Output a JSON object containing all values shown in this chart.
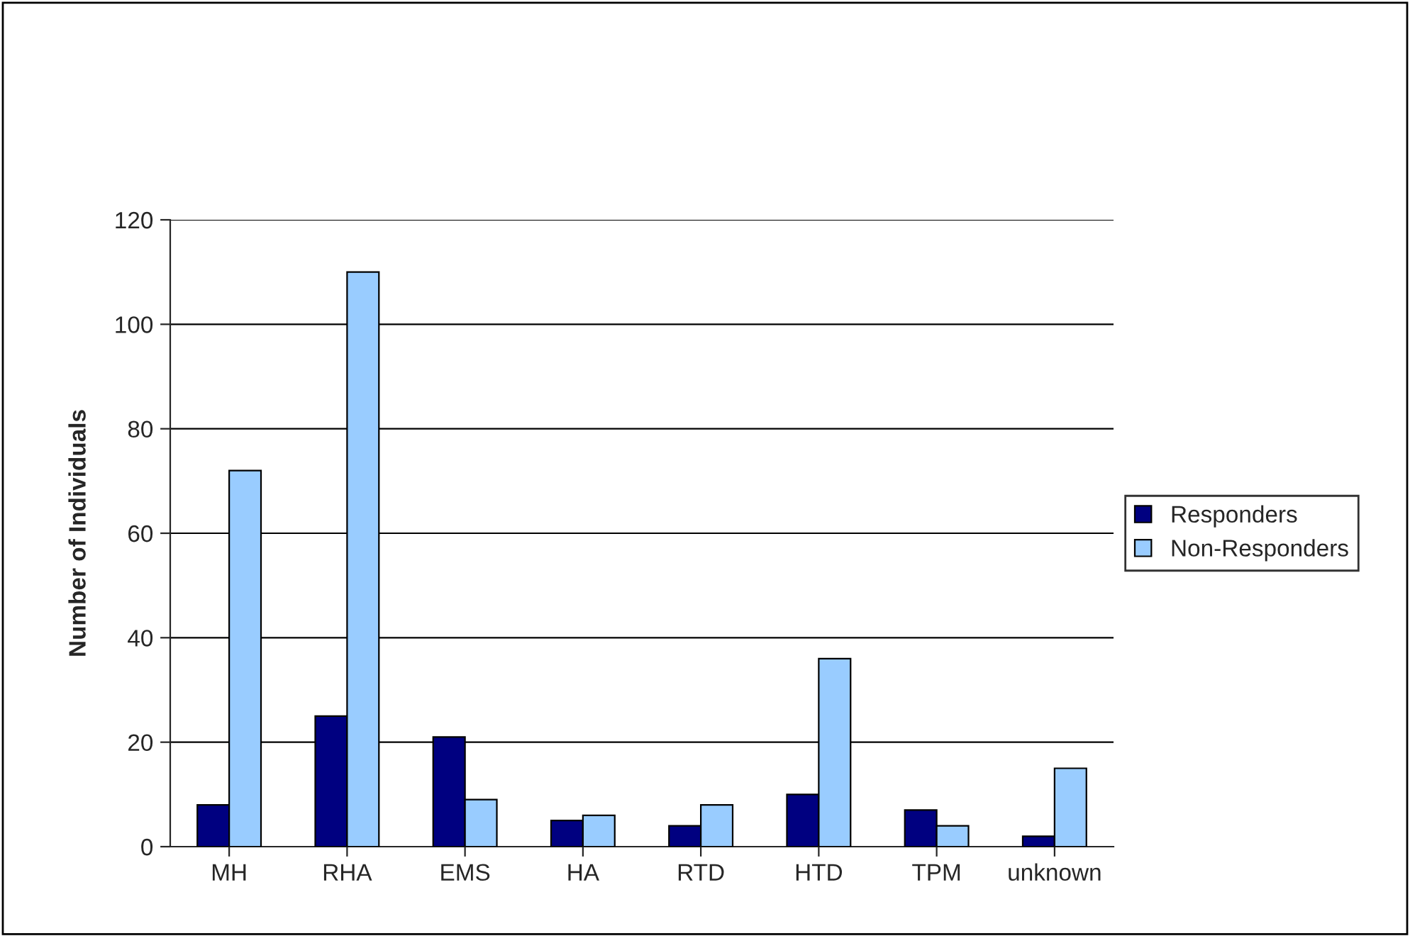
{
  "chart_data": {
    "type": "bar",
    "ylabel": "Number of Individuals",
    "categories": [
      "MH",
      "RHA",
      "EMS",
      "HA",
      "RTD",
      "HTD",
      "TPM",
      "unknown"
    ],
    "series": [
      {
        "name": "Responders",
        "color": "#000080",
        "values": [
          8,
          25,
          21,
          5,
          4,
          10,
          7,
          2
        ]
      },
      {
        "name": "Non-Responders",
        "color": "#99ccff",
        "values": [
          72,
          110,
          9,
          6,
          8,
          36,
          4,
          15
        ]
      }
    ],
    "ylim": [
      0,
      120
    ],
    "yticks": [
      0,
      20,
      40,
      60,
      80,
      100,
      120
    ],
    "grid": "y",
    "legend": "right"
  }
}
